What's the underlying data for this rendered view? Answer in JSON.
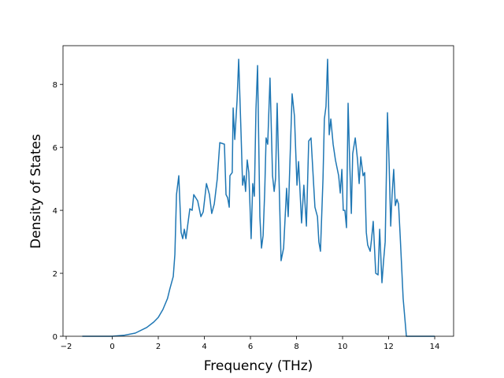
{
  "chart_data": {
    "type": "line",
    "x_label": "Frequency (THz)",
    "y_label": "Density of States",
    "xlim": [
      -2.137,
      14.82
    ],
    "ylim": [
      0,
      9.23
    ],
    "xticks": [
      {
        "value": -2,
        "label": "−2"
      },
      0,
      2,
      4,
      6,
      8,
      10,
      12,
      14
    ],
    "yticks": [
      0,
      2,
      4,
      6,
      8
    ],
    "grid": false,
    "x": [
      -1.3,
      0,
      0.5,
      1,
      1.5,
      1.8,
      2.0,
      2.2,
      2.4,
      2.5,
      2.65,
      2.72,
      2.79,
      2.89,
      2.99,
      3.06,
      3.13,
      3.2,
      3.37,
      3.47,
      3.54,
      3.71,
      3.85,
      3.95,
      4.09,
      4.22,
      4.32,
      4.43,
      4.56,
      4.67,
      4.87,
      4.94,
      5.01,
      5.08,
      5.11,
      5.21,
      5.25,
      5.32,
      5.42,
      5.49,
      5.59,
      5.66,
      5.73,
      5.79,
      5.86,
      5.93,
      6.03,
      6.1,
      6.17,
      6.24,
      6.31,
      6.41,
      6.48,
      6.55,
      6.62,
      6.68,
      6.75,
      6.85,
      6.96,
      7.03,
      7.09,
      7.16,
      7.33,
      7.44,
      7.57,
      7.64,
      7.81,
      7.91,
      8.02,
      8.09,
      8.22,
      8.32,
      8.43,
      8.53,
      8.63,
      8.8,
      8.91,
      8.97,
      9.04,
      9.15,
      9.21,
      9.28,
      9.35,
      9.42,
      9.49,
      9.59,
      9.69,
      9.83,
      9.9,
      9.97,
      10.03,
      10.1,
      10.17,
      10.24,
      10.31,
      10.38,
      10.44,
      10.55,
      10.65,
      10.72,
      10.79,
      10.89,
      10.96,
      11.03,
      11.09,
      11.2,
      11.26,
      11.33,
      11.44,
      11.54,
      11.61,
      11.71,
      11.78,
      11.85,
      11.95,
      12.02,
      12.09,
      12.15,
      12.22,
      12.29,
      12.36,
      12.43,
      12.5,
      12.63,
      12.77,
      14
    ],
    "series": [
      {
        "color": "#1f77b4",
        "values": [
          0,
          0,
          0.03,
          0.1,
          0.28,
          0.45,
          0.6,
          0.85,
          1.2,
          1.5,
          1.9,
          2.6,
          4.5,
          5.1,
          3.3,
          3.1,
          3.4,
          3.1,
          4.05,
          4.0,
          4.5,
          4.3,
          3.8,
          3.95,
          4.85,
          4.5,
          3.9,
          4.2,
          5.0,
          6.15,
          6.1,
          4.5,
          4.4,
          4.1,
          5.1,
          5.2,
          7.25,
          6.25,
          7.5,
          8.8,
          6.5,
          4.8,
          5.1,
          4.6,
          5.6,
          5.2,
          3.1,
          4.85,
          4.45,
          7.2,
          8.6,
          3.8,
          2.8,
          3.2,
          4.6,
          6.3,
          6.1,
          8.2,
          5.1,
          4.6,
          5.0,
          7.4,
          2.4,
          2.8,
          4.7,
          3.8,
          7.7,
          7.0,
          4.8,
          5.55,
          3.6,
          4.8,
          3.5,
          6.2,
          6.3,
          4.1,
          3.8,
          3.0,
          2.7,
          5.0,
          6.9,
          7.3,
          8.8,
          6.4,
          6.9,
          6.1,
          5.6,
          5.1,
          4.55,
          5.3,
          4.0,
          4.0,
          3.45,
          7.4,
          5.5,
          3.9,
          5.8,
          6.3,
          5.6,
          4.85,
          5.7,
          5.1,
          5.2,
          3.3,
          2.9,
          2.7,
          3.1,
          3.65,
          2.0,
          1.95,
          3.4,
          1.7,
          2.4,
          3.0,
          7.1,
          5.5,
          3.5,
          4.5,
          5.3,
          4.15,
          4.35,
          4.2,
          3.2,
          1.2,
          0,
          0
        ]
      }
    ]
  }
}
